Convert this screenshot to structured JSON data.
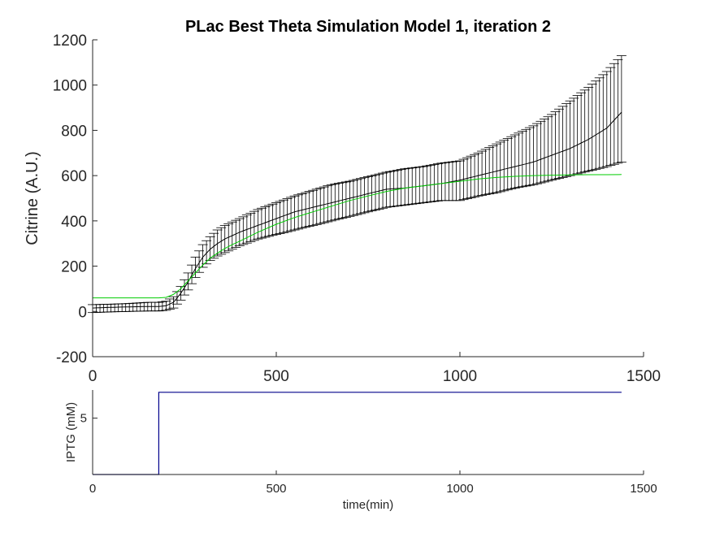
{
  "chart_data": [
    {
      "type": "line",
      "title": "PLac Best Theta Simulation Model 1, iteration 2",
      "xlabel": "",
      "ylabel": "Citrine (A.U.)",
      "xlim": [
        0,
        1500
      ],
      "ylim": [
        -200,
        1200
      ],
      "xticks": [
        "0",
        "500",
        "1000",
        "1500"
      ],
      "yticks": [
        "-200",
        "0",
        "200",
        "400",
        "600",
        "800",
        "1000",
        "1200"
      ],
      "grid": false,
      "series": [
        {
          "kind": "errorbar",
          "color": "#000000",
          "x": [
            0,
            50,
            100,
            150,
            180,
            200,
            220,
            240,
            260,
            280,
            300,
            320,
            340,
            360,
            380,
            400,
            450,
            500,
            550,
            600,
            650,
            700,
            750,
            800,
            850,
            900,
            950,
            1000,
            1050,
            1100,
            1150,
            1200,
            1250,
            1300,
            1350,
            1400,
            1440
          ],
          "mean": [
            15,
            18,
            20,
            22,
            22,
            25,
            40,
            80,
            130,
            190,
            240,
            275,
            300,
            320,
            335,
            350,
            380,
            410,
            440,
            460,
            480,
            500,
            520,
            540,
            545,
            555,
            565,
            580,
            600,
            620,
            640,
            660,
            690,
            720,
            760,
            810,
            880
          ],
          "lower": [
            -5,
            -2,
            0,
            2,
            2,
            5,
            15,
            50,
            95,
            150,
            195,
            225,
            245,
            260,
            275,
            290,
            320,
            340,
            360,
            380,
            400,
            420,
            440,
            460,
            470,
            480,
            490,
            490,
            510,
            525,
            545,
            560,
            580,
            600,
            620,
            640,
            660
          ],
          "upper": [
            30,
            32,
            35,
            40,
            40,
            45,
            65,
            110,
            170,
            240,
            295,
            330,
            360,
            380,
            395,
            410,
            450,
            480,
            510,
            535,
            560,
            575,
            595,
            615,
            630,
            640,
            655,
            665,
            700,
            740,
            780,
            820,
            870,
            930,
            990,
            1060,
            1130
          ]
        },
        {
          "kind": "line",
          "color": "#00cc00",
          "x": [
            0,
            180,
            200,
            220,
            240,
            260,
            280,
            300,
            320,
            340,
            360,
            380,
            400,
            450,
            500,
            550,
            600,
            650,
            700,
            750,
            800,
            850,
            900,
            950,
            1000,
            1050,
            1100,
            1150,
            1200,
            1250,
            1300,
            1350,
            1400,
            1440
          ],
          "y": [
            60,
            60,
            62,
            75,
            100,
            135,
            170,
            205,
            235,
            258,
            278,
            295,
            310,
            350,
            385,
            415,
            440,
            465,
            490,
            510,
            530,
            545,
            555,
            565,
            575,
            585,
            592,
            597,
            600,
            602,
            603,
            604,
            604,
            605
          ]
        }
      ]
    },
    {
      "type": "line",
      "title": "",
      "xlabel": "time(min)",
      "ylabel": "IPTG (mM)",
      "xlim": [
        0,
        1500
      ],
      "ylim": [
        0,
        7.5
      ],
      "xticks": [
        "0",
        "500",
        "1000",
        "1500"
      ],
      "yticks": [
        "5"
      ],
      "grid": false,
      "series": [
        {
          "kind": "step",
          "color": "#00008b",
          "x": [
            0,
            180,
            180,
            1440
          ],
          "y": [
            0,
            0,
            7.3,
            7.3
          ]
        }
      ]
    }
  ]
}
